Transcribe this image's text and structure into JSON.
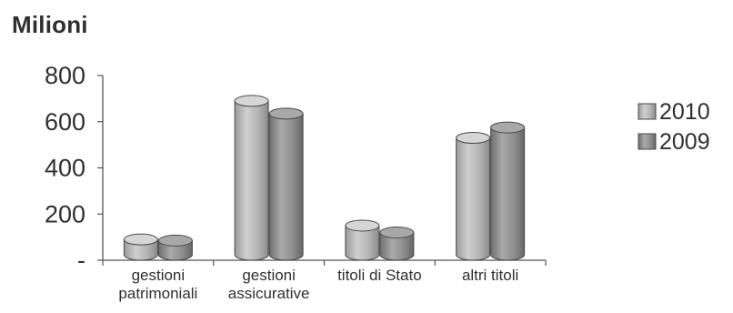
{
  "chart_data": {
    "type": "bar",
    "title": "Milioni",
    "categories": [
      [
        "gestioni",
        "patrimoniali"
      ],
      [
        "gestioni",
        "assicurative"
      ],
      [
        "titoli di Stato"
      ],
      [
        "altri titoli"
      ]
    ],
    "series": [
      {
        "name": "2010",
        "values": [
          90,
          690,
          150,
          530
        ],
        "color": "#b4b4b4"
      },
      {
        "name": "2009",
        "values": [
          85,
          635,
          120,
          575
        ],
        "color": "#8e8e8e"
      }
    ],
    "yticks": [
      {
        "value": 800,
        "label": "800"
      },
      {
        "value": 600,
        "label": "600"
      },
      {
        "value": 400,
        "label": "400"
      },
      {
        "value": 200,
        "label": "200"
      },
      {
        "value": 0,
        "label": "-"
      }
    ],
    "ylim": [
      0,
      800
    ],
    "xlabel": "",
    "ylabel": "",
    "grid": false,
    "legend_position": "right",
    "bar_style": "3d-cylinder"
  }
}
